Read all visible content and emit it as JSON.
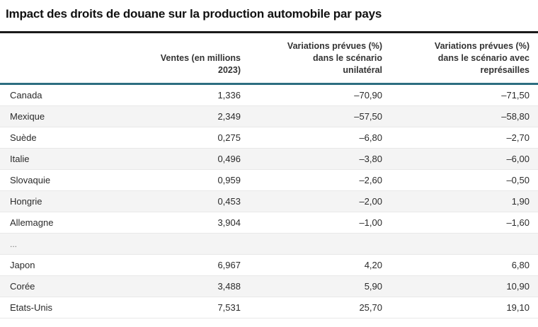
{
  "chart_data": {
    "type": "table",
    "title": "Impact des droits de douane sur la production automobile par pays",
    "columns": [
      "",
      "Ventes (en millions\n2023)",
      "Variations prévues (%)\ndans le scénario\nunilatéral",
      "Variations prévues (%)\ndans le scénario avec\nreprésailles"
    ],
    "rows": [
      [
        "Canada",
        "1,336",
        "–70,90",
        "–71,50"
      ],
      [
        "Mexique",
        "2,349",
        "–57,50",
        "–58,80"
      ],
      [
        "Suède",
        "0,275",
        "–6,80",
        "–2,70"
      ],
      [
        "Italie",
        "0,496",
        "–3,80",
        "–6,00"
      ],
      [
        "Slovaquie",
        "0,959",
        "–2,60",
        "–0,50"
      ],
      [
        "Hongrie",
        "0,453",
        "–2,00",
        "1,90"
      ],
      [
        "Allemagne",
        "3,904",
        "–1,00",
        "–1,60"
      ],
      [
        "...",
        "",
        "",
        ""
      ],
      [
        "Japon",
        "6,967",
        "4,20",
        "6,80"
      ],
      [
        "Corée",
        "3,488",
        "5,90",
        "10,90"
      ],
      [
        "Etats-Unis",
        "7,531",
        "25,70",
        "19,10"
      ]
    ],
    "layout": {
      "zebra_striping": true,
      "header_rule_color": "#2d6e80",
      "title_rule_color": "#1a1a1a",
      "zebra_color": "#f4f4f4"
    }
  }
}
